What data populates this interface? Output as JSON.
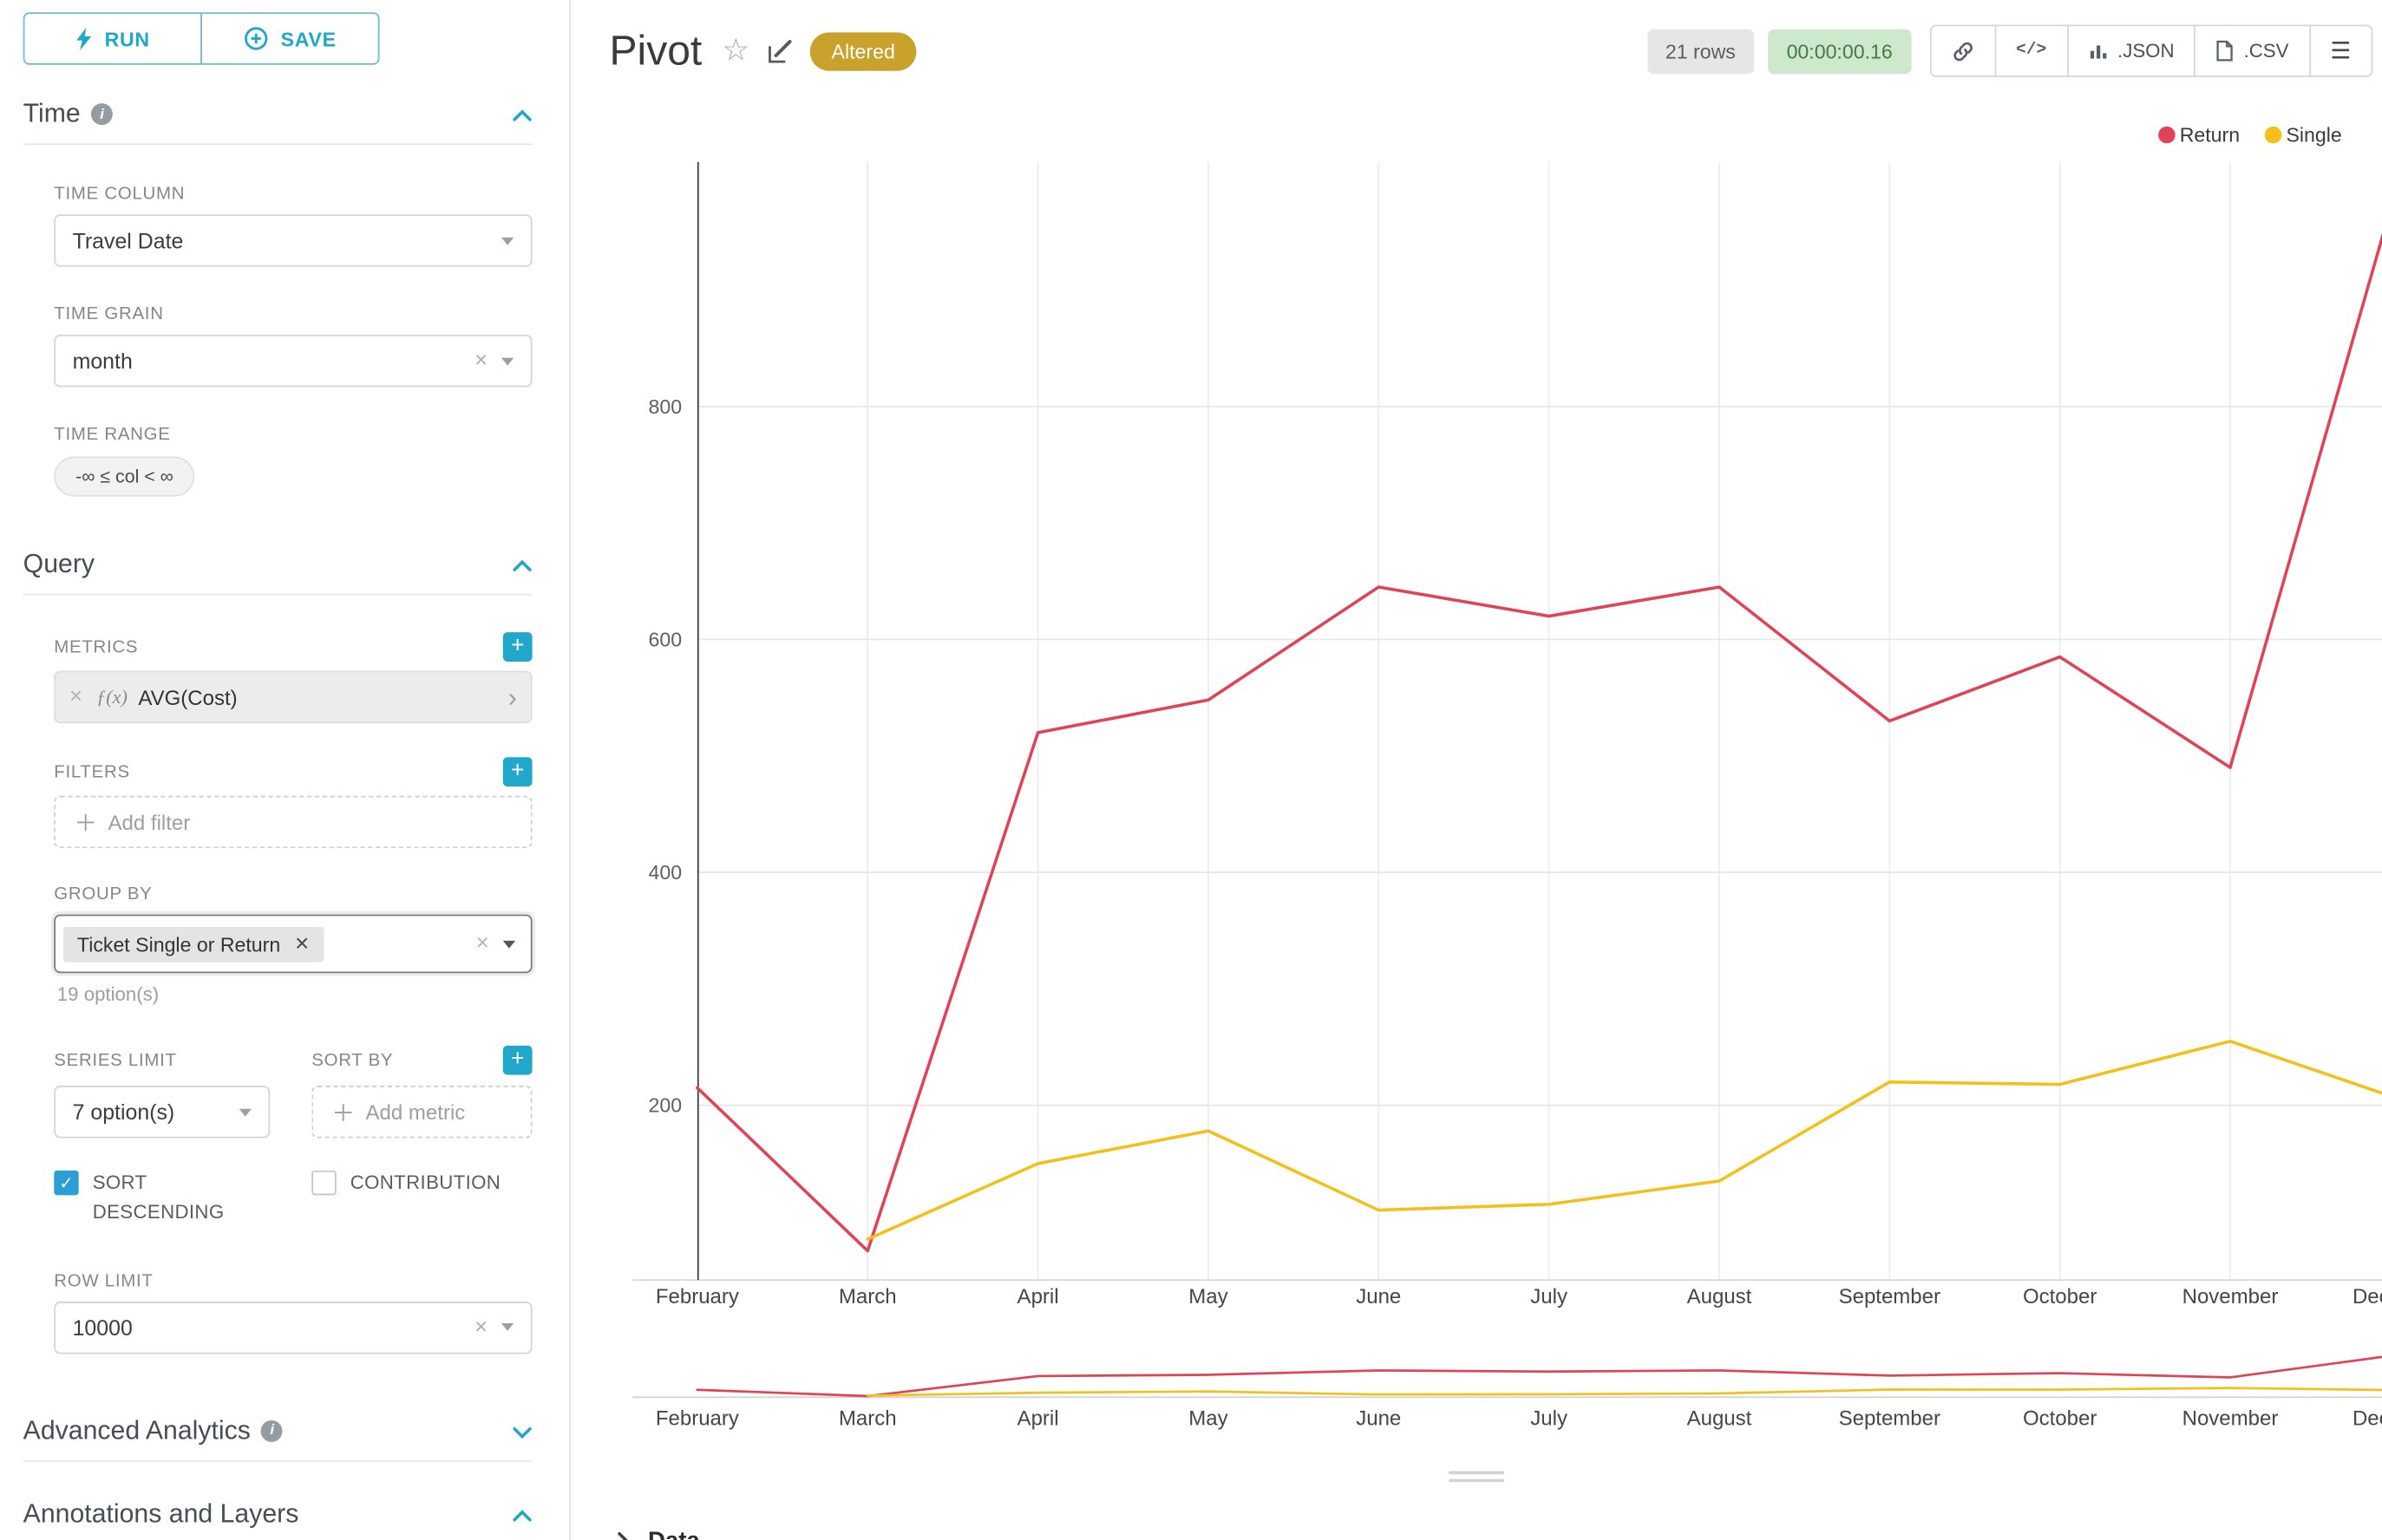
{
  "toolbar": {
    "run_label": "RUN",
    "save_label": "SAVE"
  },
  "sidebar": {
    "time": {
      "title": "Time",
      "time_column_label": "TIME COLUMN",
      "time_column_value": "Travel Date",
      "time_grain_label": "TIME GRAIN",
      "time_grain_value": "month",
      "time_range_label": "TIME RANGE",
      "time_range_value": "-∞ ≤ col < ∞"
    },
    "query": {
      "title": "Query",
      "metrics_label": "METRICS",
      "metric_fx": "ƒ(x)",
      "metric_value": "AVG(Cost)",
      "filters_label": "FILTERS",
      "add_filter_placeholder": "Add filter",
      "group_by_label": "GROUP BY",
      "group_by_chip": "Ticket Single or Return",
      "group_by_hint": "19 option(s)",
      "series_limit_label": "SERIES LIMIT",
      "series_limit_value": "7 option(s)",
      "sort_by_label": "SORT BY",
      "add_metric_placeholder": "Add metric",
      "sort_descending_label": "SORT DESCENDING",
      "sort_descending_checked": true,
      "contribution_label": "CONTRIBUTION",
      "contribution_checked": false,
      "row_limit_label": "ROW LIMIT",
      "row_limit_value": "10000"
    },
    "advanced_analytics_title": "Advanced Analytics",
    "annotations_title": "Annotations and Layers"
  },
  "header": {
    "title": "Pivot",
    "badge": "Altered",
    "rows_badge": "21 rows",
    "timer": "00:00:00.16",
    "json_label": ".JSON",
    "csv_label": ".CSV"
  },
  "data_panel": {
    "title": "Data"
  },
  "colors": {
    "accent": "#20a7c9",
    "altered_badge": "#c9a22b",
    "timer_bg": "#cde8cd",
    "timer_text": "#457a45"
  },
  "chart_data": {
    "type": "line",
    "title": "Pivot",
    "categories": [
      "February",
      "March",
      "April",
      "May",
      "June",
      "July",
      "August",
      "September",
      "October",
      "November",
      "December"
    ],
    "series": [
      {
        "name": "Return",
        "color": "#e04355",
        "values": [
          215,
          75,
          520,
          548,
          645,
          620,
          645,
          530,
          585,
          490,
          1000
        ]
      },
      {
        "name": "Single",
        "color": "#f2c019",
        "values": [
          null,
          85,
          150,
          178,
          110,
          115,
          135,
          220,
          218,
          255,
          205
        ]
      }
    ],
    "yticks": [
      200,
      400,
      600,
      800
    ],
    "ylim": [
      50,
      1010
    ],
    "xlabel": "",
    "ylabel": "",
    "grid": true,
    "legend_position": "top-right",
    "has_preview_brush": true
  }
}
